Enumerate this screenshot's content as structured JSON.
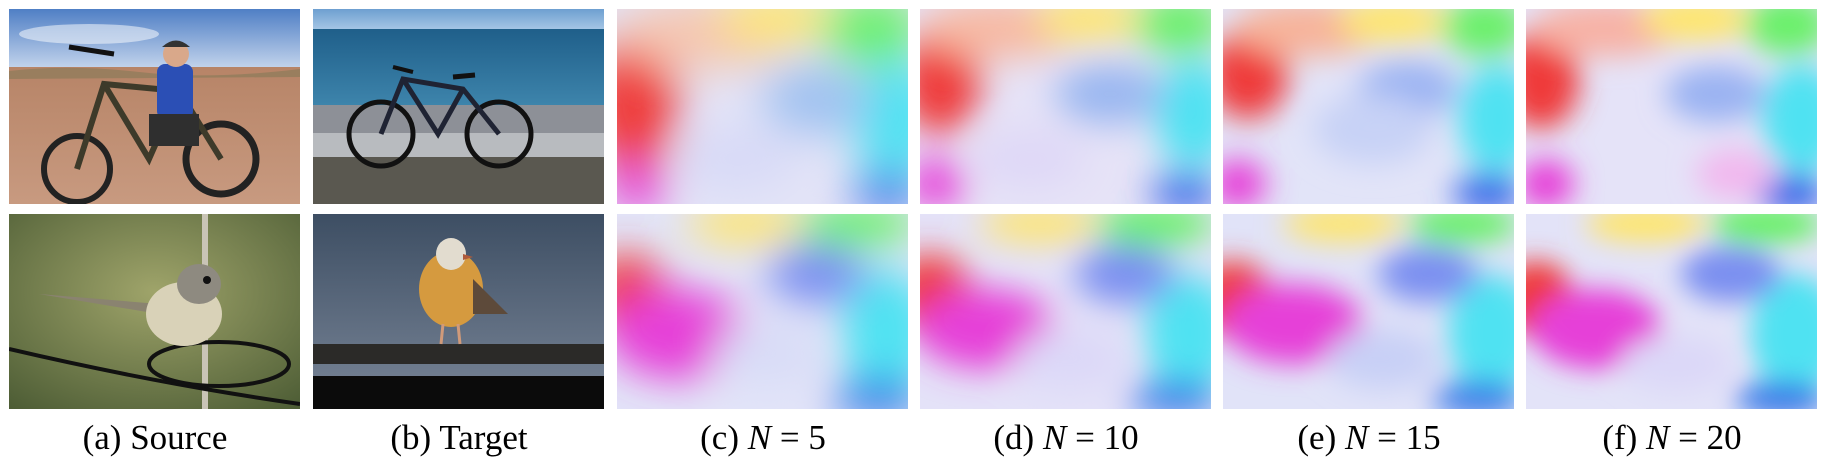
{
  "figure": {
    "columns": [
      {
        "prefix": "(a) Source",
        "var": "",
        "suffix": ""
      },
      {
        "prefix": "(b) Target",
        "var": "",
        "suffix": ""
      },
      {
        "prefix": "(c) ",
        "var": "N",
        "suffix": " = 5"
      },
      {
        "prefix": "(d) ",
        "var": "N",
        "suffix": " = 10"
      },
      {
        "prefix": "(e) ",
        "var": "N",
        "suffix": " = 15"
      },
      {
        "prefix": "(f) ",
        "var": "N",
        "suffix": " = 20"
      }
    ],
    "rows": [
      {
        "source": "cyclist posing with mountain bike in desert",
        "target": "mountain bike on road by the sea"
      },
      {
        "source": "small bird perched on wire",
        "target": "seagull standing on railing"
      }
    ],
    "flow_colors": {
      "red": "#ef3b3b",
      "magenta": "#e640d8",
      "yellow": "#ffe66b",
      "green": "#6af06a",
      "cyan": "#4fe2f2",
      "blue": "#3d6be8",
      "lavender": "#dcdcf7"
    }
  }
}
